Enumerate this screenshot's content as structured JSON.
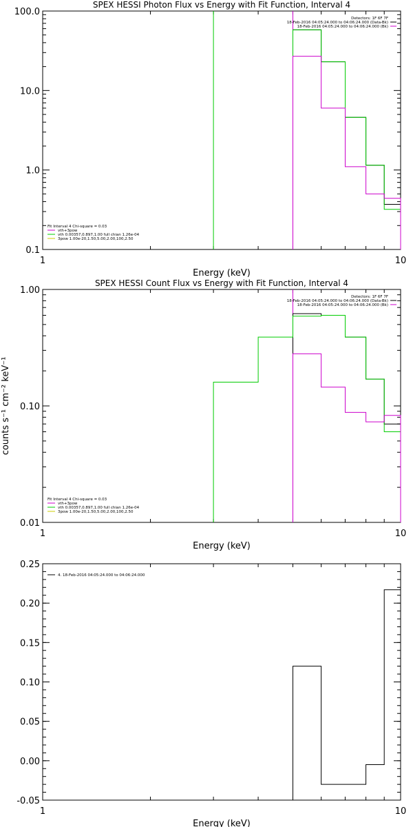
{
  "chart_data": [
    {
      "type": "line",
      "title": "SPEX HESSI Photon Flux vs Energy with Fit Function, Interval 4",
      "xlabel": "Energy (keV)",
      "ylabel": "",
      "xscale": "log",
      "yscale": "log",
      "xlim": [
        1,
        10
      ],
      "ylim": [
        0.1,
        100
      ],
      "xticks": [
        {
          "v": 1,
          "label": "1"
        },
        {
          "v": 10,
          "label": "10"
        }
      ],
      "yticks": [
        {
          "v": 0.1,
          "label": "0.1"
        },
        {
          "v": 1,
          "label": "1.0"
        },
        {
          "v": 10,
          "label": "10.0"
        },
        {
          "v": 100,
          "label": "100.0"
        }
      ],
      "header": [
        "Detectors: 1F 6F 7F",
        "18-Feb-2016 04:05:24.000 to 04:06:24.000 (Data-Bk)",
        "18-Feb-2016 04:05:24.000 to 04:06:24.000 (Bk)"
      ],
      "header_colors": [
        "#000000",
        "#cc00cc"
      ],
      "legend": [
        "Fit Interval 4   Chi-square = 0.03",
        "vth+3pow",
        "vth 0.00357,0.897,1.00  full chian 1.26e-04",
        "3pow 1.00e-20,1.50,5.00,2.00,100,2.50"
      ],
      "legend_colors": [
        "#000000",
        "#cc00cc",
        "#00cc00",
        "#cccc00"
      ],
      "vlines": [
        {
          "x": 3.0,
          "color": "#00cc00"
        },
        {
          "x": 5.0,
          "color": "#cc00cc"
        }
      ],
      "series": [
        {
          "color": "#000000",
          "edges": [
            5,
            6,
            7,
            8,
            9,
            10
          ],
          "values": [
            58,
            23,
            4.6,
            1.15,
            0.37
          ]
        },
        {
          "color": "#00cc00",
          "edges": [
            5,
            6,
            7,
            8,
            9,
            10
          ],
          "values": [
            58,
            23,
            4.6,
            1.15,
            0.32
          ]
        },
        {
          "color": "#cc00cc",
          "edges": [
            5,
            6,
            7,
            8,
            9,
            10
          ],
          "values": [
            27,
            6,
            1.1,
            0.5,
            0.44
          ]
        }
      ]
    },
    {
      "type": "line",
      "title": "SPEX HESSI Count Flux vs Energy with Fit Function, Interval 4",
      "xlabel": "Energy (keV)",
      "ylabel": "counts s⁻¹ cm⁻² keV⁻¹",
      "xscale": "log",
      "yscale": "log",
      "xlim": [
        1,
        10
      ],
      "ylim": [
        0.01,
        1
      ],
      "xticks": [
        {
          "v": 1,
          "label": "1"
        },
        {
          "v": 10,
          "label": "10"
        }
      ],
      "yticks": [
        {
          "v": 0.01,
          "label": "0.01"
        },
        {
          "v": 0.1,
          "label": "0.10"
        },
        {
          "v": 1,
          "label": "1.00"
        }
      ],
      "header": [
        "Detectors: 1F 6F 7F",
        "18-Feb-2016 04:05:24.000 to 04:06:24.000 (Data-Bk)",
        "18-Feb-2016 04:05:24.000 to 04:06:24.000 (Bk)"
      ],
      "header_colors": [
        "#000000",
        "#cc00cc"
      ],
      "legend": [
        "Fit Interval 4   Chi-square = 0.03",
        "vth+3pow",
        "vth 0.00357,0.897,1.00  full chian 1.26e-04",
        "3pow 1.00e-20,1.50,5.00,2.00,100,2.50"
      ],
      "legend_colors": [
        "#000000",
        "#cc00cc",
        "#00cc00",
        "#cccc00"
      ],
      "vlines": [
        {
          "x": 5.0,
          "color": "#cc00cc"
        }
      ],
      "series": [
        {
          "color": "#000000",
          "edges": [
            5,
            6,
            7,
            8,
            9,
            10
          ],
          "values": [
            0.62,
            0.6,
            0.39,
            0.17,
            0.07
          ]
        },
        {
          "color": "#00cc00",
          "edges": [
            3,
            4,
            5,
            6,
            7,
            8,
            9,
            10
          ],
          "values": [
            0.16,
            0.39,
            0.59,
            0.6,
            0.39,
            0.17,
            0.06
          ]
        },
        {
          "color": "#cc00cc",
          "edges": [
            5,
            6,
            7,
            8,
            9,
            10
          ],
          "values": [
            0.28,
            0.145,
            0.088,
            0.073,
            0.083
          ]
        }
      ]
    },
    {
      "type": "line",
      "title": "",
      "xlabel": "Energy (keV)",
      "ylabel": "",
      "xscale": "log",
      "yscale": "linear",
      "xlim": [
        1,
        10
      ],
      "ylim": [
        -0.05,
        0.25
      ],
      "xticks": [
        {
          "v": 1,
          "label": "1"
        },
        {
          "v": 10,
          "label": "10"
        }
      ],
      "yticks": [
        {
          "v": -0.05,
          "label": "-0.05"
        },
        {
          "v": 0,
          "label": "0.00"
        },
        {
          "v": 0.05,
          "label": "0.05"
        },
        {
          "v": 0.1,
          "label": "0.10"
        },
        {
          "v": 0.15,
          "label": "0.15"
        },
        {
          "v": 0.2,
          "label": "0.20"
        },
        {
          "v": 0.25,
          "label": "0.25"
        }
      ],
      "header": [],
      "header_colors": [],
      "legend": [
        "4. 18-Feb-2016 04:05:24.000 to 04:06:24.000"
      ],
      "legend_colors": [
        "#000000"
      ],
      "vlines": [],
      "series": [
        {
          "color": "#000000",
          "edges": [
            5,
            6,
            8,
            9,
            10
          ],
          "values": [
            0.12,
            -0.03,
            -0.005,
            0.217
          ]
        }
      ]
    }
  ]
}
